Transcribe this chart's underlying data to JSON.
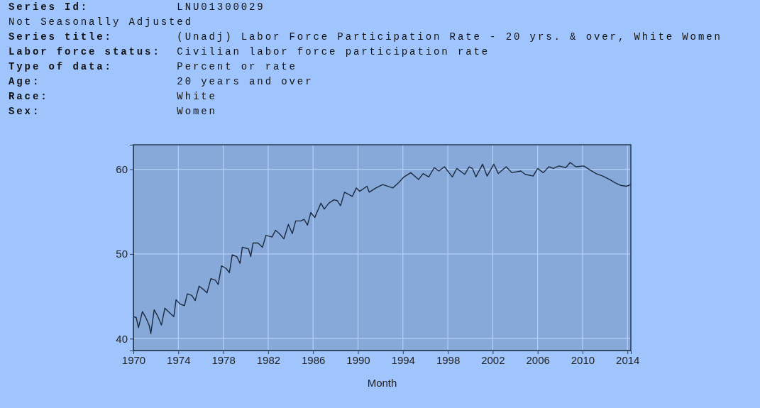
{
  "chart_data": {
    "type": "line",
    "xlabel": "Month",
    "annotations": [
      "Series Id:           LNU01300029",
      "Not Seasonally Adjusted",
      "Series title:        (Unadj) Labor Force Participation Rate - 20 yrs. & over, White Women",
      "Labor force status:  Civilian labor force participation rate",
      "Type of data:        Percent or rate",
      "Age:                 20 years and over",
      "Race:                White",
      "Sex:                 Women"
    ],
    "xlim": [
      1970,
      2014.3
    ],
    "xticks": [
      1970,
      1974,
      1978,
      1982,
      1986,
      1990,
      1994,
      1998,
      2002,
      2006,
      2010,
      2014
    ],
    "ylim": [
      38.6,
      62.9
    ],
    "yticks": [
      40,
      50,
      60
    ],
    "grid": true,
    "marker": "none",
    "line_style": "solid",
    "series": [
      {
        "color": "#1c2a3e",
        "x": [
          1970.0,
          1970.25,
          1970.45,
          1970.8,
          1971.1,
          1971.4,
          1971.55,
          1971.85,
          1972.15,
          1972.5,
          1972.8,
          1973.1,
          1973.6,
          1973.8,
          1974.15,
          1974.55,
          1974.8,
          1975.2,
          1975.5,
          1975.85,
          1976.25,
          1976.55,
          1976.9,
          1977.3,
          1977.55,
          1977.85,
          1978.25,
          1978.55,
          1978.8,
          1979.2,
          1979.5,
          1979.7,
          1980.25,
          1980.45,
          1980.65,
          1981.1,
          1981.5,
          1981.8,
          1982.35,
          1982.65,
          1983.0,
          1983.4,
          1983.8,
          1984.15,
          1984.45,
          1984.9,
          1985.2,
          1985.5,
          1985.8,
          1986.15,
          1986.7,
          1987.0,
          1987.4,
          1987.85,
          1988.15,
          1988.45,
          1988.8,
          1989.5,
          1989.85,
          1990.15,
          1990.8,
          1991.0,
          1991.6,
          1992.2,
          1993.1,
          1993.6,
          1994.1,
          1994.7,
          1995.4,
          1995.8,
          1996.3,
          1996.8,
          1997.2,
          1997.7,
          1998.4,
          1998.8,
          1999.5,
          1999.9,
          2000.2,
          2000.5,
          2001.1,
          2001.5,
          2002.1,
          2002.5,
          2003.2,
          2003.7,
          2004.5,
          2004.9,
          2005.6,
          2006.0,
          2006.5,
          2007.0,
          2007.4,
          2007.9,
          2008.5,
          2008.9,
          2009.4,
          2010.1,
          2010.7,
          2011.2,
          2011.8,
          2012.4,
          2012.9,
          2013.4,
          2013.9,
          2014.3
        ],
        "values": [
          42.6,
          42.5,
          41.3,
          43.2,
          42.5,
          41.6,
          40.6,
          43.4,
          42.7,
          41.6,
          43.6,
          43.2,
          42.6,
          44.6,
          44.1,
          43.9,
          45.3,
          45.1,
          44.5,
          46.2,
          45.8,
          45.4,
          47.1,
          46.9,
          46.4,
          48.6,
          48.3,
          47.8,
          49.9,
          49.7,
          48.9,
          50.8,
          50.6,
          49.7,
          51.3,
          51.3,
          50.8,
          52.2,
          52.0,
          52.8,
          52.4,
          51.8,
          53.5,
          52.4,
          53.9,
          53.9,
          54.1,
          53.4,
          54.9,
          54.3,
          56.0,
          55.3,
          56.0,
          56.4,
          56.3,
          55.7,
          57.3,
          56.8,
          57.8,
          57.4,
          58.0,
          57.3,
          57.8,
          58.2,
          57.8,
          58.4,
          59.1,
          59.6,
          58.8,
          59.5,
          59.1,
          60.2,
          59.8,
          60.3,
          59.1,
          60.1,
          59.4,
          60.3,
          60.1,
          59.1,
          60.6,
          59.2,
          60.6,
          59.5,
          60.3,
          59.6,
          59.8,
          59.4,
          59.2,
          60.1,
          59.6,
          60.3,
          60.1,
          60.4,
          60.2,
          60.8,
          60.3,
          60.4,
          59.9,
          59.5,
          59.2,
          58.8,
          58.4,
          58.1,
          58.0,
          58.2
        ]
      }
    ]
  }
}
